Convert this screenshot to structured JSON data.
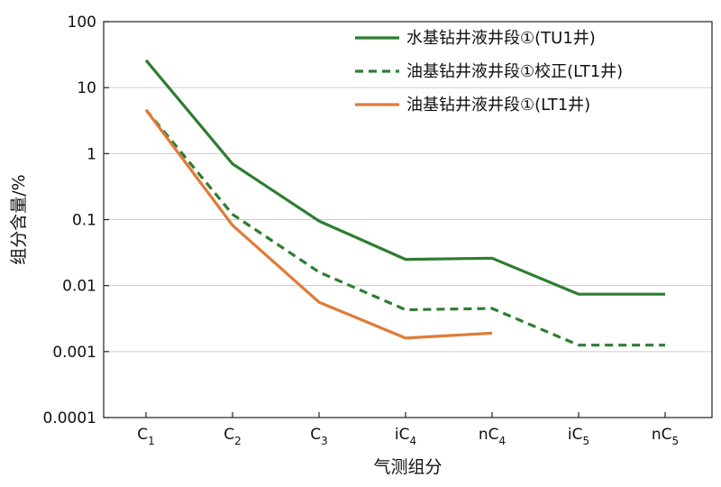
{
  "chart_data": {
    "type": "line",
    "categories": [
      {
        "base": "C",
        "sub": "1"
      },
      {
        "base": "C",
        "sub": "2"
      },
      {
        "base": "C",
        "sub": "3"
      },
      {
        "base": "iC",
        "sub": "4"
      },
      {
        "base": "nC",
        "sub": "4"
      },
      {
        "base": "iC",
        "sub": "5"
      },
      {
        "base": "nC",
        "sub": "5"
      }
    ],
    "xlabel": "气测组分",
    "ylabel": "组分含量/%",
    "yscale": "log",
    "ylim": [
      0.0001,
      100
    ],
    "yticks": [
      100,
      10,
      1,
      0.1,
      0.01,
      0.001,
      0.0001
    ],
    "ytick_labels": [
      "100",
      "10",
      "1",
      "0.1",
      "0.01",
      "0.001",
      "0.0001"
    ],
    "grid": "horizontal",
    "legend_position": "top-right",
    "series": [
      {
        "name": "水基钻井液井段①(TU1井)",
        "color": "#2e7d32",
        "style": "solid",
        "values": [
          26,
          0.7,
          0.095,
          0.025,
          0.026,
          0.0074,
          0.0074
        ]
      },
      {
        "name": "油基钻井液井段①校正(LT1井)",
        "color": "#2e7d32",
        "style": "dashed",
        "values": [
          4.6,
          0.12,
          0.016,
          0.0043,
          0.0045,
          0.00125,
          0.00125
        ]
      },
      {
        "name": "油基钻井液井段①(LT1井)",
        "color": "#e07b39",
        "style": "solid",
        "values": [
          4.6,
          0.082,
          0.0056,
          0.0016,
          0.0019,
          null,
          null
        ]
      }
    ]
  }
}
